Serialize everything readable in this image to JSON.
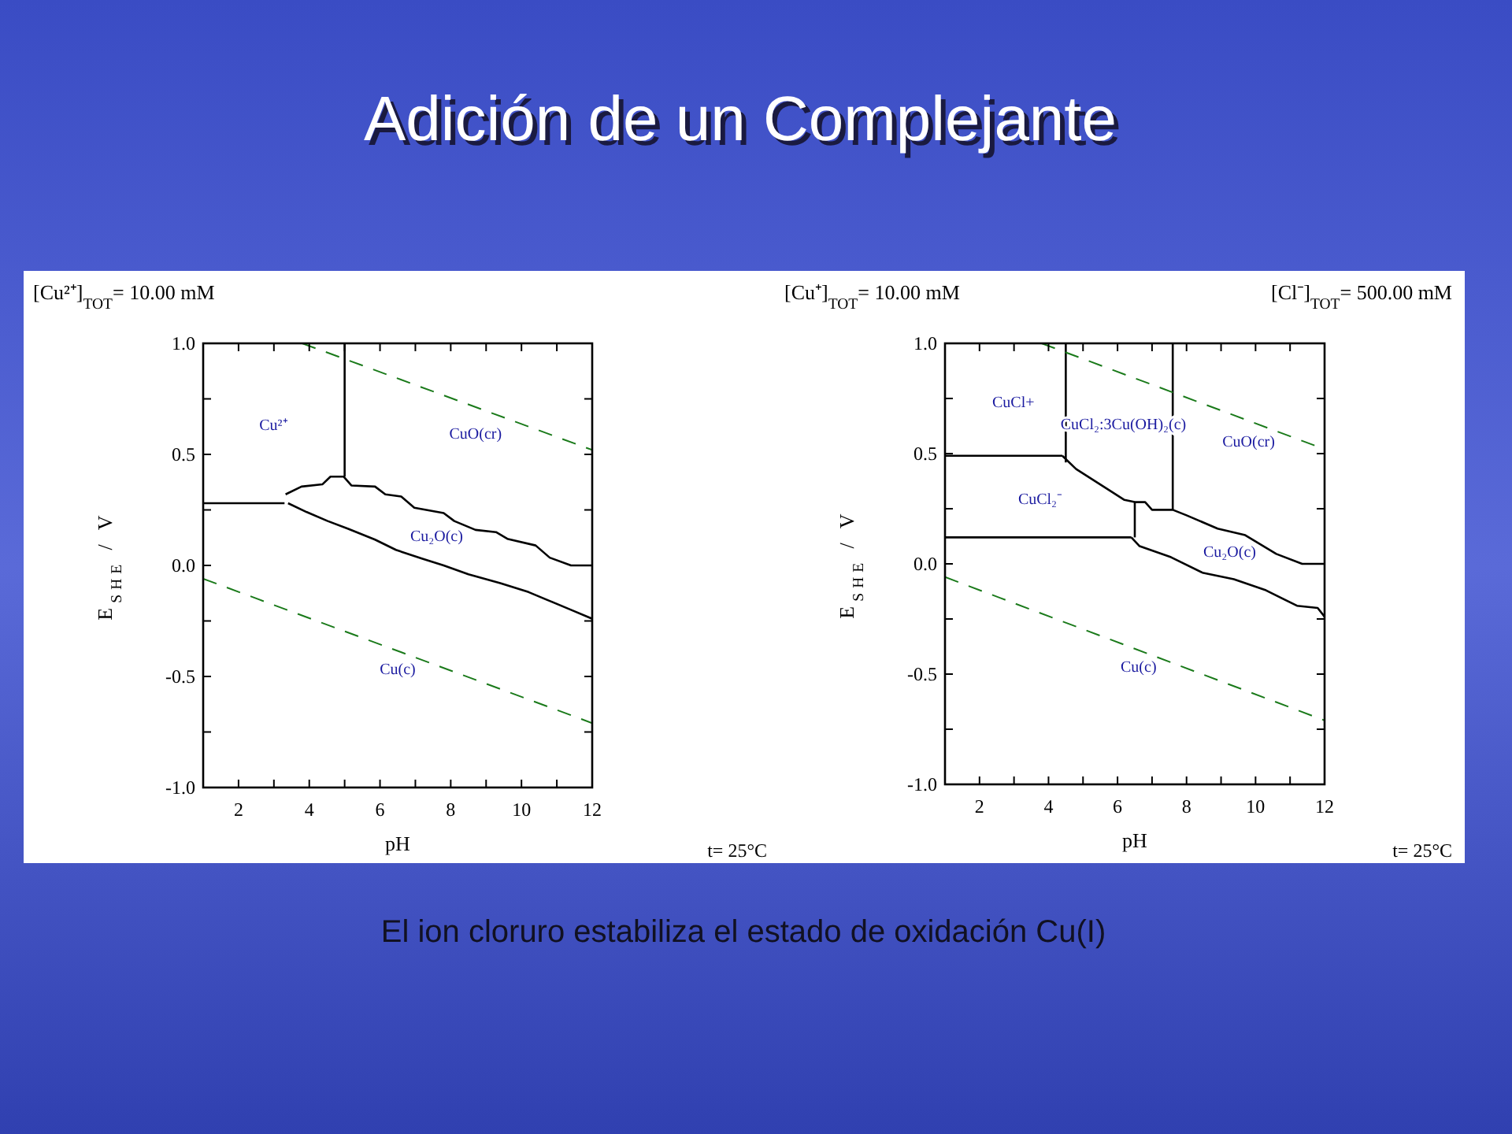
{
  "chart_data": [
    {
      "type": "other",
      "title": "Adición de un Complejante",
      "annotations": [
        "El ion cloruro estabiliza el estado de oxidación Cu(I)"
      ]
    },
    {
      "type": "line",
      "title": "[Cu²⁺]$_{TOT}$=  10.00 mM",
      "xlabel": "pH",
      "ylabel": "E$_{SHE}$ / V",
      "xlim": [
        1,
        12
      ],
      "ylim": [
        -1,
        1
      ],
      "xticks": [
        {
          "value": 1,
          "label": null
        },
        2,
        {
          "value": 3,
          "label": null
        },
        4,
        {
          "value": 5,
          "label": null
        },
        6,
        {
          "value": 7,
          "label": null
        },
        8,
        {
          "value": 9,
          "label": null
        },
        10,
        {
          "value": 11,
          "label": null
        },
        12
      ],
      "yticks": [
        {
          "value": -1,
          "label": "-1.0"
        },
        {
          "value": -0.75,
          "label": null
        },
        {
          "value": -0.5,
          "label": "-0.5"
        },
        {
          "value": -0.25,
          "label": null
        },
        {
          "value": 0,
          "label": "0.0"
        },
        {
          "value": 0.25,
          "label": null
        },
        {
          "value": 0.5,
          "label": "0.5"
        },
        {
          "value": 0.75,
          "label": null
        },
        {
          "value": 1,
          "label": "1.0"
        }
      ],
      "series": [
        {
          "color": "#000000",
          "x": [
            1,
            3.3
          ],
          "values": [
            0.28,
            0.28
          ]
        },
        {
          "color": "#000000",
          "x": [
            5,
            5
          ],
          "values": [
            0.4,
            1.0
          ]
        },
        {
          "color": "#000000",
          "x": [
            3.33,
            3.78,
            4.37,
            4.6,
            4.97,
            5.19,
            5.86,
            6.15,
            6.6,
            6.97,
            7.8,
            8.1,
            8.7,
            9.28,
            9.6,
            10.4,
            10.8,
            11.4,
            12
          ],
          "values": [
            0.32,
            0.355,
            0.365,
            0.4,
            0.4,
            0.36,
            0.355,
            0.32,
            0.31,
            0.26,
            0.236,
            0.2,
            0.16,
            0.15,
            0.12,
            0.09,
            0.035,
            0.0,
            0.0
          ]
        },
        {
          "color": "#000000",
          "x": [
            3.4,
            3.93,
            4.52,
            5.1,
            5.86,
            6.45,
            7.2,
            7.8,
            8.5,
            9.4,
            10.2,
            10.8,
            11.4,
            12
          ],
          "values": [
            0.28,
            0.24,
            0.2,
            0.165,
            0.116,
            0.07,
            0.03,
            0.0,
            -0.04,
            -0.08,
            -0.12,
            -0.16,
            -0.2,
            -0.24
          ]
        },
        {
          "color": "#1a7a1a",
          "line_style": "dashed",
          "x": [
            3.8,
            12
          ],
          "values": [
            1.0,
            0.52
          ]
        },
        {
          "color": "#1a7a1a",
          "line_style": "dashed",
          "x": [
            1,
            12
          ],
          "values": [
            -0.06,
            -0.71
          ]
        }
      ],
      "annotations": [
        "Cu²⁺",
        "CuO(cr)",
        "Cu₂O(c)",
        "Cu(c)",
        "t= 25°C"
      ]
    },
    {
      "type": "line",
      "title": "[Cu⁺]$_{TOT}$=  10.00 mM",
      "subtitle": "[Cl⁻]$_{TOT}$=  500.00 mM",
      "xlabel": "pH",
      "ylabel": "E$_{SHE}$ / V",
      "xlim": [
        1,
        12
      ],
      "ylim": [
        -1,
        1
      ],
      "xticks": [
        {
          "value": 1,
          "label": null
        },
        2,
        {
          "value": 3,
          "label": null
        },
        4,
        {
          "value": 5,
          "label": null
        },
        6,
        {
          "value": 7,
          "label": null
        },
        8,
        {
          "value": 9,
          "label": null
        },
        10,
        {
          "value": 11,
          "label": null
        },
        12
      ],
      "yticks": [
        {
          "value": -1,
          "label": "-1.0"
        },
        {
          "value": -0.75,
          "label": null
        },
        {
          "value": -0.5,
          "label": "-0.5"
        },
        {
          "value": -0.25,
          "label": null
        },
        {
          "value": 0,
          "label": "0.0"
        },
        {
          "value": 0.25,
          "label": null
        },
        {
          "value": 0.5,
          "label": "0.5"
        },
        {
          "value": 0.75,
          "label": null
        },
        {
          "value": 1,
          "label": "1.0"
        }
      ],
      "series": [
        {
          "color": "#000000",
          "x": [
            1,
            4.4
          ],
          "values": [
            0.49,
            0.49
          ]
        },
        {
          "color": "#000000",
          "x": [
            4.5,
            4.5
          ],
          "values": [
            0.46,
            1.0
          ]
        },
        {
          "color": "#000000",
          "x": [
            4.4,
            4.8,
            5.3,
            5.8,
            6.2,
            6.5,
            6.8,
            7.0,
            7.6,
            8.0,
            8.9,
            9.7,
            10.6,
            11.35,
            12
          ],
          "values": [
            0.49,
            0.43,
            0.38,
            0.33,
            0.29,
            0.28,
            0.28,
            0.245,
            0.245,
            0.22,
            0.16,
            0.13,
            0.045,
            0.0,
            0.0
          ]
        },
        {
          "color": "#000000",
          "x": [
            6.5,
            6.5
          ],
          "values": [
            0.12,
            0.28
          ]
        },
        {
          "color": "#000000",
          "x": [
            1,
            6.4
          ],
          "values": [
            0.12,
            0.12
          ]
        },
        {
          "color": "#000000",
          "x": [
            6.4,
            6.64,
            7.55,
            8.46,
            9.37,
            10.3,
            11.2,
            11.8,
            12
          ],
          "values": [
            0.12,
            0.08,
            0.03,
            -0.04,
            -0.07,
            -0.12,
            -0.19,
            -0.2,
            -0.24
          ]
        },
        {
          "color": "#000000",
          "x": [
            7.6,
            7.6
          ],
          "values": [
            0.245,
            1.0
          ]
        },
        {
          "color": "#1a7a1a",
          "line_style": "dashed",
          "x": [
            3.8,
            12
          ],
          "values": [
            1.0,
            0.52
          ]
        },
        {
          "color": "#1a7a1a",
          "line_style": "dashed",
          "x": [
            1,
            12
          ],
          "values": [
            -0.06,
            -0.71
          ]
        }
      ],
      "annotations": [
        "CuCl+",
        "CuCl₂:3Cu(OH)₂(c)",
        "CuO(cr)",
        "CuCl₂⁻",
        "Cu₂O(c)",
        "Cu(c)",
        "t= 25°C"
      ]
    }
  ]
}
